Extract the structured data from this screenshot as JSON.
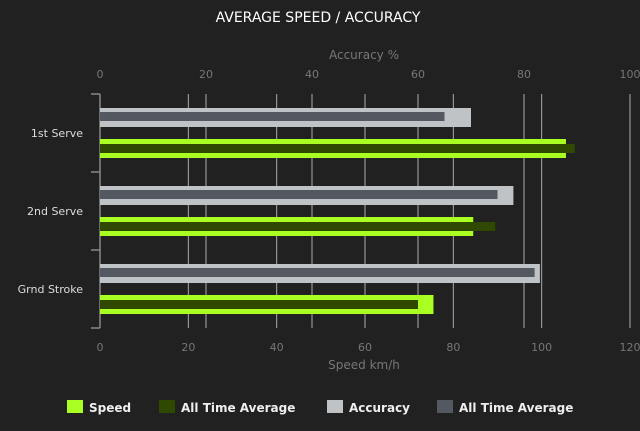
{
  "chart_data": {
    "type": "bar",
    "orientation": "horizontal",
    "title": "AVERAGE SPEED / ACCURACY",
    "categories": [
      "1st Serve",
      "2nd Serve",
      "Grnd Stroke"
    ],
    "speed_axis": {
      "label": "Speed km/h",
      "range": [
        0,
        120
      ],
      "ticks": [
        0,
        20,
        40,
        60,
        80,
        100,
        120
      ],
      "position": "bottom"
    },
    "accuracy_axis": {
      "label": "Accuracy %",
      "range": [
        0,
        100
      ],
      "ticks": [
        0,
        20,
        40,
        60,
        80,
        100
      ],
      "position": "top"
    },
    "grid": true,
    "legend_position": "bottom",
    "series": [
      {
        "name": "Speed",
        "axis": "speed",
        "color": "#aaff22",
        "values": [
          105.5,
          84.5,
          75.5
        ]
      },
      {
        "name": "All Time Average",
        "axis": "speed",
        "color": "#2f4a00",
        "values": [
          107.5,
          89.5,
          72
        ]
      },
      {
        "name": "Accuracy",
        "axis": "accuracy",
        "color": "#bfc3c6",
        "values": [
          70,
          78,
          83
        ]
      },
      {
        "name": "All Time Average",
        "axis": "accuracy",
        "color": "#545861",
        "values": [
          65,
          75,
          82
        ]
      }
    ]
  }
}
